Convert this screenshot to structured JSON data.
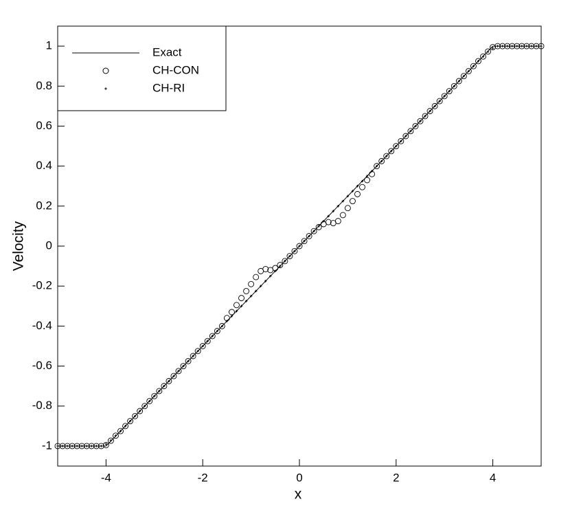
{
  "chart_data": {
    "type": "line",
    "xlabel": "x",
    "ylabel": "Velocity",
    "xlim": [
      -5,
      5
    ],
    "ylim": [
      -1.1,
      1.1
    ],
    "xticks": [
      -4,
      -2,
      0,
      2,
      4
    ],
    "yticks": [
      -1,
      -0.8,
      -0.6,
      -0.4,
      -0.2,
      0,
      0.2,
      0.4,
      0.6,
      0.8,
      1
    ],
    "legend": "upper left",
    "x": [
      -5.0,
      -4.9,
      -4.8,
      -4.7,
      -4.6,
      -4.5,
      -4.4,
      -4.3,
      -4.2,
      -4.1,
      -4.0,
      -3.9,
      -3.8,
      -3.7,
      -3.6,
      -3.5,
      -3.4,
      -3.3,
      -3.2,
      -3.1,
      -3.0,
      -2.9,
      -2.8,
      -2.7,
      -2.6,
      -2.5,
      -2.4,
      -2.3,
      -2.2,
      -2.1,
      -2.0,
      -1.9,
      -1.8,
      -1.7,
      -1.6,
      -1.5,
      -1.4,
      -1.3,
      -1.2,
      -1.1,
      -1.0,
      -0.9,
      -0.8,
      -0.7,
      -0.6,
      -0.5,
      -0.4,
      -0.3,
      -0.2,
      -0.1,
      0,
      0.1,
      0.2,
      0.3,
      0.4,
      0.5,
      0.6,
      0.7,
      0.8,
      0.9,
      1.0,
      1.1,
      1.2,
      1.3,
      1.4,
      1.5,
      1.6,
      1.7,
      1.8,
      1.9,
      2.0,
      2.1,
      2.2,
      2.3,
      2.4,
      2.5,
      2.6,
      2.7,
      2.8,
      2.9,
      3.0,
      3.1,
      3.2,
      3.3,
      3.4,
      3.5,
      3.6,
      3.7,
      3.8,
      3.9,
      4.0,
      4.1,
      4.2,
      4.3,
      4.4,
      4.5,
      4.6,
      4.7,
      4.8,
      4.9,
      5.0
    ],
    "series": [
      {
        "name": "Exact",
        "marker": "line",
        "color": "#000000",
        "x": [
          -5,
          -4,
          4,
          5
        ],
        "values": [
          -1,
          -1,
          1,
          1
        ]
      },
      {
        "name": "CH-CON",
        "marker": "circle",
        "color": "#000000",
        "values": [
          -1,
          -1,
          -1,
          -1,
          -1,
          -1,
          -1,
          -1,
          -1,
          -1,
          -0.995,
          -0.973,
          -0.948,
          -0.925,
          -0.9,
          -0.875,
          -0.85,
          -0.825,
          -0.8,
          -0.775,
          -0.75,
          -0.725,
          -0.7,
          -0.675,
          -0.65,
          -0.625,
          -0.6,
          -0.575,
          -0.55,
          -0.525,
          -0.5,
          -0.475,
          -0.45,
          -0.425,
          -0.4,
          -0.36,
          -0.33,
          -0.295,
          -0.26,
          -0.225,
          -0.19,
          -0.155,
          -0.125,
          -0.115,
          -0.12,
          -0.11,
          -0.095,
          -0.075,
          -0.05,
          -0.025,
          0,
          0.025,
          0.05,
          0.075,
          0.095,
          0.11,
          0.12,
          0.115,
          0.125,
          0.155,
          0.19,
          0.225,
          0.26,
          0.295,
          0.33,
          0.36,
          0.4,
          0.425,
          0.45,
          0.475,
          0.5,
          0.525,
          0.55,
          0.575,
          0.6,
          0.625,
          0.65,
          0.675,
          0.7,
          0.725,
          0.75,
          0.775,
          0.8,
          0.825,
          0.85,
          0.875,
          0.9,
          0.925,
          0.948,
          0.973,
          0.995,
          1,
          1,
          1,
          1,
          1,
          1,
          1,
          1,
          1,
          1
        ]
      },
      {
        "name": "CH-RI",
        "marker": "plus",
        "color": "#000000",
        "values": [
          -1,
          -1,
          -1,
          -1,
          -1,
          -1,
          -1,
          -1,
          -1,
          -1,
          -0.99,
          -0.972,
          -0.948,
          -0.925,
          -0.9,
          -0.875,
          -0.85,
          -0.825,
          -0.8,
          -0.775,
          -0.75,
          -0.725,
          -0.7,
          -0.675,
          -0.65,
          -0.625,
          -0.6,
          -0.575,
          -0.55,
          -0.525,
          -0.5,
          -0.475,
          -0.45,
          -0.425,
          -0.4,
          -0.375,
          -0.35,
          -0.325,
          -0.3,
          -0.275,
          -0.25,
          -0.225,
          -0.2,
          -0.175,
          -0.15,
          -0.125,
          -0.1,
          -0.075,
          -0.05,
          -0.025,
          0,
          0.025,
          0.05,
          0.075,
          0.1,
          0.125,
          0.15,
          0.175,
          0.2,
          0.225,
          0.25,
          0.275,
          0.3,
          0.325,
          0.35,
          0.375,
          0.4,
          0.425,
          0.45,
          0.475,
          0.5,
          0.525,
          0.55,
          0.575,
          0.6,
          0.625,
          0.65,
          0.675,
          0.7,
          0.725,
          0.75,
          0.775,
          0.8,
          0.825,
          0.85,
          0.875,
          0.9,
          0.925,
          0.948,
          0.972,
          0.99,
          1,
          1,
          1,
          1,
          1,
          1,
          1,
          1,
          1,
          1
        ]
      }
    ]
  }
}
